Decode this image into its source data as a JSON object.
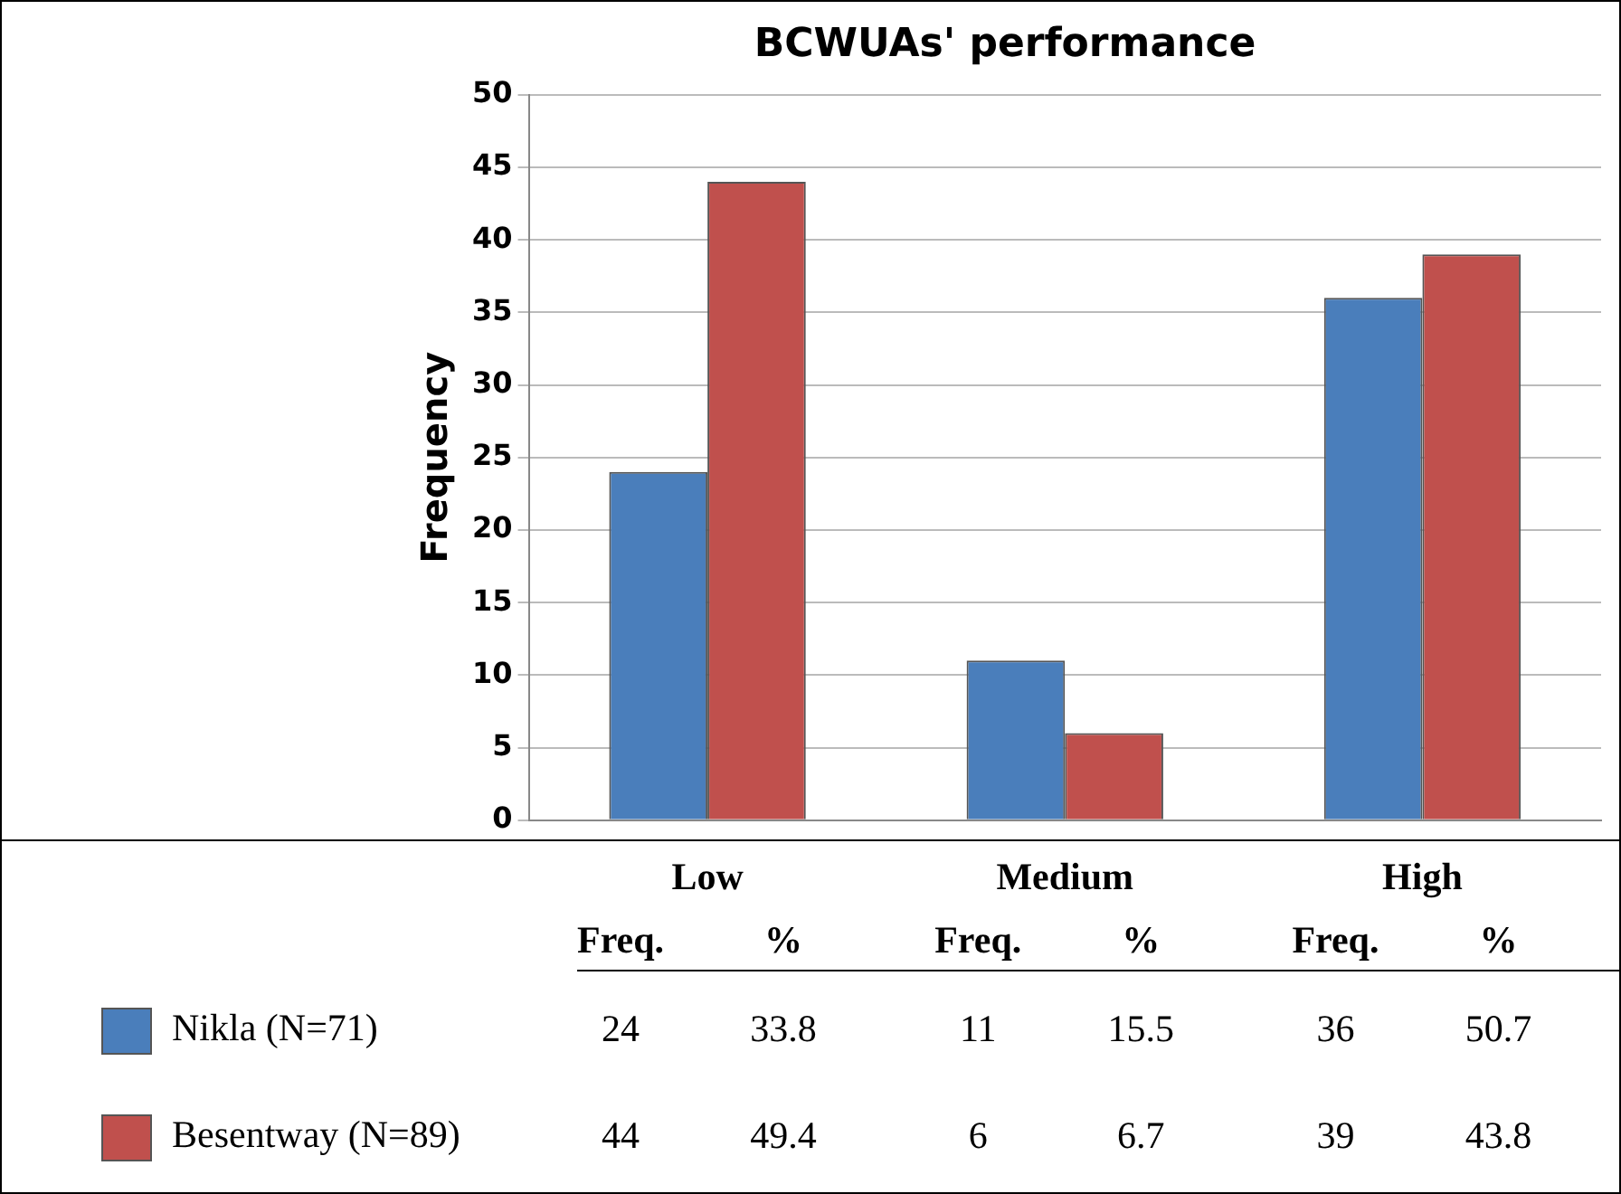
{
  "chart_data": {
    "type": "bar",
    "title": "BCWUAs' performance",
    "ylabel": "Frequency",
    "categories": [
      "Low",
      "Medium",
      "High"
    ],
    "series": [
      {
        "name": "Nikla (N=71)",
        "color": "#4a7ebb",
        "values": [
          24,
          11,
          36
        ]
      },
      {
        "name": "Besentway (N=89)",
        "color": "#c0504d",
        "values": [
          44,
          6,
          39
        ]
      }
    ],
    "ylim": [
      0,
      50
    ],
    "yticks": [
      0,
      5,
      10,
      15,
      20,
      25,
      30,
      35,
      40,
      45,
      50
    ],
    "grid": "y",
    "tick_labels": "y",
    "legend": "bottom",
    "data_labels": true,
    "annotations": [
      "Freq.",
      "%",
      "33.8",
      "15.5",
      "50.7",
      "49.4",
      "6.7",
      "43.8"
    ]
  }
}
